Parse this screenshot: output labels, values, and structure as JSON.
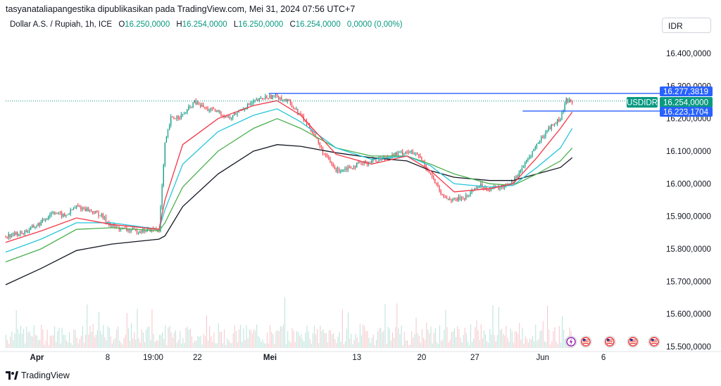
{
  "attribution": "tasyanataliapangestika dipublikasikan pada TradingView.com, Mei 31, 2024 07:56 UTC+7",
  "legend": {
    "symbol": "Dollar A.S. / Rupiah, 1h, ICE",
    "o_label": "O",
    "o_value": "16.250,0000",
    "h_label": "H",
    "h_value": "16.254,0000",
    "l_label": "L",
    "l_value": "16.250,0000",
    "c_label": "C",
    "c_value": "16.254,0000",
    "change": "0,0000 (0,00%)"
  },
  "currency": "IDR",
  "price_tags": {
    "upper": "16.277,3819",
    "symbol_label": "USDIDR",
    "last": "16.254,0000",
    "lower": "16.223,1704"
  },
  "footer_logo": "TradingView",
  "colors": {
    "up": "#089981",
    "down": "#f23645",
    "ema_red": "#f23645",
    "ema_cyan": "#26c6da",
    "ema_green": "#4caf50",
    "ema_black": "#131722",
    "level_line": "#2962ff",
    "last_tag": "#089981"
  },
  "chart_data": {
    "type": "candlestick",
    "y_ticks": [
      "16.400,0000",
      "16.300,0000",
      "16.200,0000",
      "16.100,0000",
      "16.000,0000",
      "15.900,0000",
      "15.800,0000",
      "15.700,0000",
      "15.600,0000",
      "15.500,0000"
    ],
    "y_tick_values": [
      16400,
      16300,
      16200,
      16100,
      16000,
      15900,
      15800,
      15700,
      15600,
      15500
    ],
    "ylim": [
      15490,
      16440
    ],
    "x_tick_labels": [
      "Apr",
      "8",
      "19:00",
      "22",
      "Mei",
      "13",
      "20",
      "27",
      "Jun",
      "6"
    ],
    "x_tick_bold": [
      true,
      false,
      false,
      false,
      true,
      false,
      false,
      false,
      false,
      false
    ],
    "levels": {
      "upper": 16277.38,
      "lower": 16223.17,
      "last": 16254.0
    },
    "price_path": [
      [
        0,
        15840
      ],
      [
        3,
        15850
      ],
      [
        6,
        15880
      ],
      [
        8,
        15915
      ],
      [
        10,
        15900
      ],
      [
        12,
        15930
      ],
      [
        14,
        15920
      ],
      [
        16,
        15905
      ],
      [
        18,
        15870
      ],
      [
        20,
        15860
      ],
      [
        22,
        15855
      ],
      [
        24,
        15858
      ],
      [
        26,
        15860
      ],
      [
        27,
        16120
      ],
      [
        28,
        16200
      ],
      [
        30,
        16210
      ],
      [
        32,
        16250
      ],
      [
        34,
        16230
      ],
      [
        36,
        16220
      ],
      [
        38,
        16200
      ],
      [
        40,
        16230
      ],
      [
        42,
        16250
      ],
      [
        44,
        16265
      ],
      [
        46,
        16270
      ],
      [
        48,
        16250
      ],
      [
        50,
        16210
      ],
      [
        52,
        16160
      ],
      [
        54,
        16090
      ],
      [
        56,
        16040
      ],
      [
        58,
        16050
      ],
      [
        60,
        16060
      ],
      [
        62,
        16070
      ],
      [
        64,
        16080
      ],
      [
        66,
        16090
      ],
      [
        68,
        16100
      ],
      [
        70,
        16085
      ],
      [
        72,
        16030
      ],
      [
        74,
        15960
      ],
      [
        76,
        15950
      ],
      [
        78,
        15960
      ],
      [
        80,
        15995
      ],
      [
        82,
        15985
      ],
      [
        84,
        15990
      ],
      [
        86,
        16010
      ],
      [
        88,
        16060
      ],
      [
        90,
        16120
      ],
      [
        92,
        16170
      ],
      [
        94,
        16200
      ],
      [
        95,
        16255
      ],
      [
        96,
        16254
      ]
    ],
    "ema_red": [
      [
        0,
        15820
      ],
      [
        6,
        15855
      ],
      [
        12,
        15895
      ],
      [
        18,
        15875
      ],
      [
        26,
        15860
      ],
      [
        27,
        15950
      ],
      [
        30,
        16120
      ],
      [
        36,
        16200
      ],
      [
        42,
        16240
      ],
      [
        46,
        16255
      ],
      [
        50,
        16210
      ],
      [
        56,
        16090
      ],
      [
        62,
        16060
      ],
      [
        68,
        16085
      ],
      [
        72,
        16040
      ],
      [
        76,
        15975
      ],
      [
        82,
        15985
      ],
      [
        86,
        16000
      ],
      [
        90,
        16080
      ],
      [
        94,
        16170
      ],
      [
        96,
        16220
      ]
    ],
    "ema_cyan": [
      [
        0,
        15790
      ],
      [
        6,
        15830
      ],
      [
        12,
        15880
      ],
      [
        18,
        15880
      ],
      [
        26,
        15860
      ],
      [
        27,
        15920
      ],
      [
        30,
        16060
      ],
      [
        36,
        16160
      ],
      [
        42,
        16210
      ],
      [
        46,
        16230
      ],
      [
        50,
        16190
      ],
      [
        56,
        16110
      ],
      [
        62,
        16075
      ],
      [
        68,
        16085
      ],
      [
        72,
        16055
      ],
      [
        76,
        16000
      ],
      [
        82,
        15990
      ],
      [
        86,
        15995
      ],
      [
        90,
        16050
      ],
      [
        94,
        16110
      ],
      [
        96,
        16170
      ]
    ],
    "ema_green": [
      [
        0,
        15760
      ],
      [
        6,
        15800
      ],
      [
        12,
        15860
      ],
      [
        18,
        15865
      ],
      [
        26,
        15855
      ],
      [
        27,
        15880
      ],
      [
        30,
        15990
      ],
      [
        36,
        16100
      ],
      [
        42,
        16170
      ],
      [
        46,
        16200
      ],
      [
        50,
        16170
      ],
      [
        56,
        16110
      ],
      [
        62,
        16085
      ],
      [
        68,
        16085
      ],
      [
        72,
        16060
      ],
      [
        76,
        16030
      ],
      [
        82,
        16000
      ],
      [
        86,
        15995
      ],
      [
        90,
        16030
      ],
      [
        94,
        16070
      ],
      [
        96,
        16110
      ]
    ],
    "ema_black": [
      [
        0,
        15690
      ],
      [
        6,
        15740
      ],
      [
        12,
        15795
      ],
      [
        18,
        15815
      ],
      [
        26,
        15830
      ],
      [
        27,
        15840
      ],
      [
        30,
        15930
      ],
      [
        36,
        16030
      ],
      [
        42,
        16100
      ],
      [
        46,
        16120
      ],
      [
        50,
        16115
      ],
      [
        56,
        16095
      ],
      [
        62,
        16080
      ],
      [
        68,
        16070
      ],
      [
        72,
        16040
      ],
      [
        76,
        16020
      ],
      [
        82,
        16010
      ],
      [
        86,
        16010
      ],
      [
        90,
        16030
      ],
      [
        94,
        16050
      ],
      [
        96,
        16080
      ]
    ]
  }
}
